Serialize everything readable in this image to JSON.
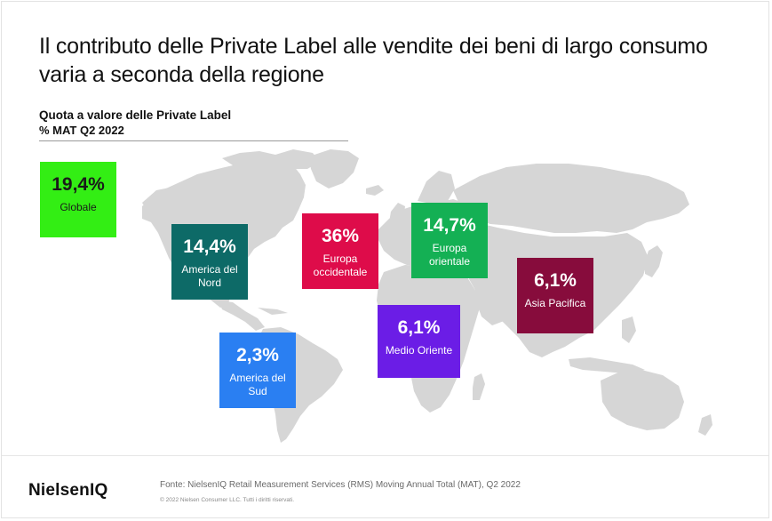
{
  "title": "Il contributo delle Private Label alle vendite dei beni di largo consumo varia a seconda della regione",
  "subtitle": "Quota a valore delle Private Label",
  "subtitle2": "% MAT Q2 2022",
  "colors": {
    "map": "#d6d6d6",
    "globale": "#33ee14",
    "america_nord": "#0d6a67",
    "europa_occidentale": "#de0c4a",
    "europa_orientale": "#14b054",
    "asia_pacifica": "#870c3c",
    "america_sud": "#2a7ff2",
    "medio_oriente": "#6b1de6"
  },
  "chart_data": {
    "type": "map",
    "unit": "%",
    "regions": [
      {
        "key": "globale",
        "name": "Globale",
        "value": 19.4,
        "label": "19,4%",
        "region_label": "Globale"
      },
      {
        "key": "america_nord",
        "name": "America del Nord",
        "value": 14.4,
        "label": "14,4%",
        "region_label": "America del Nord"
      },
      {
        "key": "europa_occidentale",
        "name": "Europa occidentale",
        "value": 36,
        "label": "36%",
        "region_label": "Europa occidentale"
      },
      {
        "key": "europa_orientale",
        "name": "Europa orientale",
        "value": 14.7,
        "label": "14,7%",
        "region_label": "Europa orientale"
      },
      {
        "key": "asia_pacifica",
        "name": "Asia Pacifica",
        "value": 6.1,
        "label": "6,1%",
        "region_label": "Asia Pacifica"
      },
      {
        "key": "america_sud",
        "name": "America del Sud",
        "value": 2.3,
        "label": "2,3%",
        "region_label": "America del Sud"
      },
      {
        "key": "medio_oriente",
        "name": "Medio Oriente",
        "value": 6.1,
        "label": "6,1%",
        "region_label": "Medio Oriente"
      }
    ]
  },
  "footer": {
    "logo": "NielsenIQ",
    "source": "Fonte: NielsenIQ Retail Measurement Services (RMS) Moving Annual Total (MAT), Q2 2022",
    "copyright": "© 2022 Nielsen Consumer LLC. Tutti i diritti riservati."
  }
}
